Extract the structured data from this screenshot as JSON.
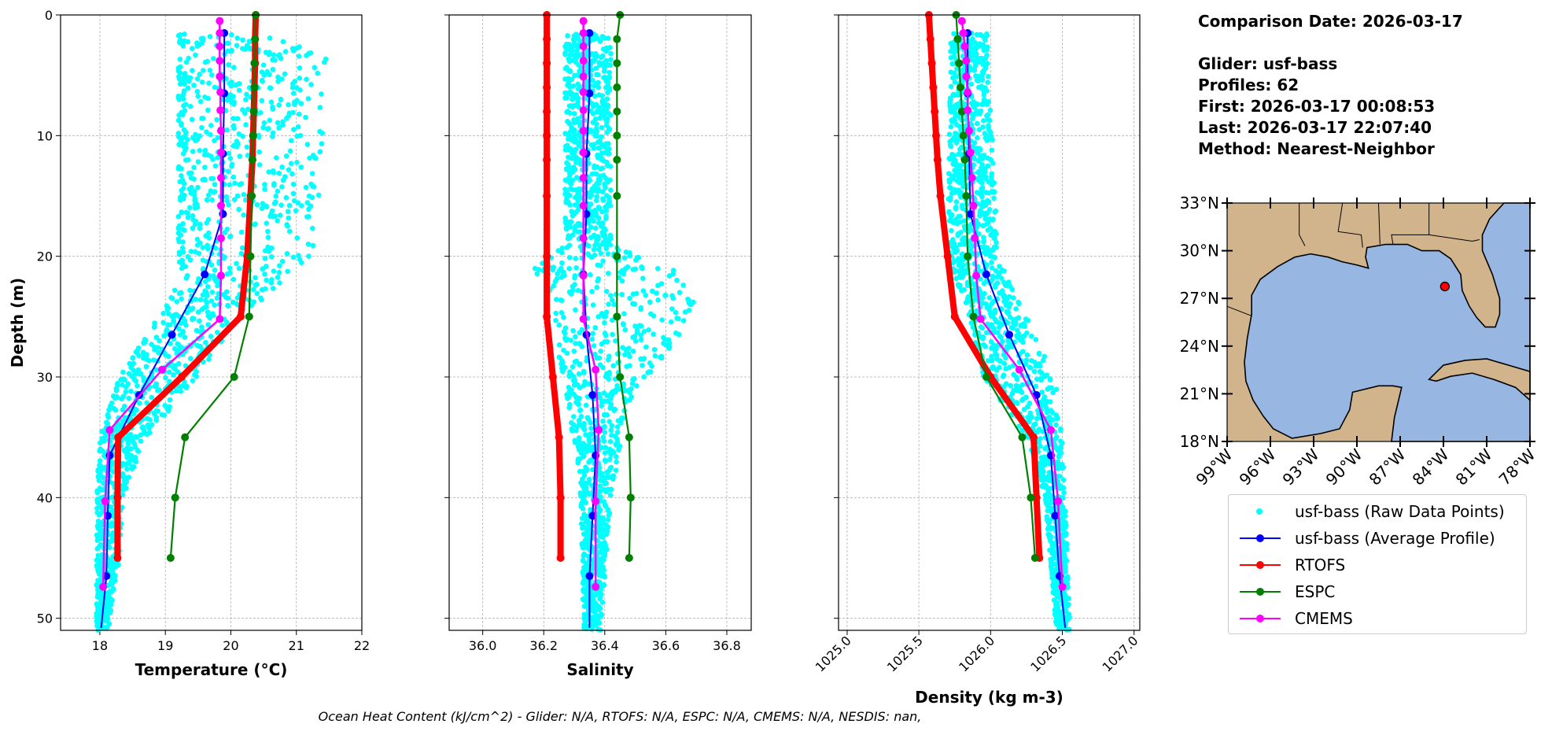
{
  "info": {
    "comparison_date": "Comparison Date: 2026-03-17",
    "glider": "Glider: usf-bass",
    "profiles": "Profiles: 62",
    "first": "First: 2026-03-17 00:08:53",
    "last": "Last: 2026-03-17 22:07:40",
    "method": "Method: Nearest-Neighbor"
  },
  "footer": "Ocean Heat Content (kJ/cm^2) - Glider: N/A,  RTOFS: N/A,  ESPC: N/A,  CMEMS: N/A,  NESDIS: nan,",
  "legend": [
    {
      "label": "usf-bass (Raw Data Points)",
      "color": "#00ffff",
      "style": "dot"
    },
    {
      "label": "usf-bass (Average Profile)",
      "color": "#0000ff",
      "style": "line-marker"
    },
    {
      "label": "RTOFS",
      "color": "#ff0000",
      "style": "line-marker"
    },
    {
      "label": "ESPC",
      "color": "#008000",
      "style": "line-marker"
    },
    {
      "label": "CMEMS",
      "color": "#ff00ff",
      "style": "line-marker"
    }
  ],
  "map": {
    "lon_range": [
      -99,
      -78
    ],
    "lat_range": [
      18,
      33
    ],
    "lon_ticks": [
      "99°W",
      "96°W",
      "93°W",
      "90°W",
      "87°W",
      "84°W",
      "81°W",
      "78°W"
    ],
    "lat_ticks": [
      "18°N",
      "21°N",
      "24°N",
      "27°N",
      "30°N",
      "33°N"
    ],
    "glider_position": {
      "lon": -83.9,
      "lat": 27.75
    },
    "land_color": "#d2b48c",
    "water_color": "#97b6e1"
  },
  "chart_data": [
    {
      "type": "line",
      "xlabel": "Temperature (°C)",
      "ylabel": "Depth (m)",
      "xlim": [
        17.4,
        22.0
      ],
      "ylim": [
        51,
        0
      ],
      "xticks": [
        "18",
        "19",
        "20",
        "21",
        "22"
      ],
      "yticks": [
        "0",
        "10",
        "20",
        "30",
        "40",
        "50"
      ],
      "grid": true,
      "raw_envelope": [
        [
          2,
          19.2,
          21.5
        ],
        [
          20,
          19.2,
          21.3
        ],
        [
          22,
          19.2,
          20.9
        ],
        [
          25,
          18.9,
          20.1
        ],
        [
          30,
          18.3,
          19.5
        ],
        [
          35,
          18.0,
          18.7
        ],
        [
          40,
          17.95,
          18.35
        ],
        [
          45,
          17.95,
          18.3
        ],
        [
          50,
          17.95,
          18.15
        ]
      ],
      "series": [
        {
          "name": "usf-bass (Average Profile)",
          "depth": [
            1.5,
            6.5,
            11.5,
            16.5,
            21.5,
            26.5,
            31.5,
            36.5,
            41.5,
            46.5,
            50.8
          ],
          "values": [
            19.9,
            19.9,
            19.88,
            19.88,
            19.6,
            19.1,
            18.6,
            18.15,
            18.12,
            18.1,
            18.02
          ]
        },
        {
          "name": "RTOFS",
          "depth": [
            0,
            2,
            4,
            6,
            8,
            10,
            12,
            15,
            20,
            25,
            30,
            35,
            40,
            45
          ],
          "values": [
            20.38,
            20.37,
            20.37,
            20.36,
            20.35,
            20.34,
            20.33,
            20.3,
            20.25,
            20.15,
            19.25,
            18.28,
            18.27,
            18.27
          ]
        },
        {
          "name": "ESPC",
          "depth": [
            0,
            2,
            4,
            6,
            8,
            10,
            12,
            15,
            20,
            25,
            30,
            35,
            40,
            45
          ],
          "values": [
            20.38,
            20.37,
            20.36,
            20.36,
            20.35,
            20.34,
            20.33,
            20.32,
            20.3,
            20.28,
            20.05,
            19.3,
            19.15,
            19.08
          ]
        },
        {
          "name": "CMEMS",
          "depth": [
            0.5,
            1.5,
            2.6,
            3.8,
            5.1,
            6.4,
            7.9,
            9.6,
            11.4,
            13.5,
            15.8,
            18.5,
            21.6,
            25.2,
            29.4,
            34.4,
            40.3,
            47.4
          ],
          "values": [
            19.83,
            19.83,
            19.83,
            19.83,
            19.83,
            19.84,
            19.84,
            19.85,
            19.85,
            19.85,
            19.85,
            19.85,
            19.85,
            19.83,
            18.95,
            18.15,
            18.08,
            18.05
          ]
        }
      ]
    },
    {
      "type": "line",
      "xlabel": "Salinity",
      "xlim": [
        35.89,
        36.88
      ],
      "ylim": [
        51,
        0
      ],
      "xticks": [
        "36.0",
        "36.2",
        "36.4",
        "36.6",
        "36.8"
      ],
      "grid": true,
      "raw_envelope": [
        [
          2,
          36.27,
          36.42
        ],
        [
          19,
          36.27,
          36.42
        ],
        [
          21,
          36.17,
          36.62
        ],
        [
          24,
          36.22,
          36.72
        ],
        [
          28,
          36.24,
          36.6
        ],
        [
          32,
          36.28,
          36.48
        ],
        [
          36,
          36.3,
          36.45
        ],
        [
          40,
          36.32,
          36.42
        ],
        [
          50,
          36.33,
          36.39
        ]
      ],
      "series": [
        {
          "name": "usf-bass (Average Profile)",
          "depth": [
            1.5,
            6.5,
            11.5,
            16.5,
            21.5,
            26.5,
            31.5,
            36.5,
            41.5,
            46.5,
            50.8
          ],
          "values": [
            36.35,
            36.35,
            36.34,
            36.34,
            36.33,
            36.34,
            36.36,
            36.37,
            36.36,
            36.35,
            36.35
          ]
        },
        {
          "name": "RTOFS",
          "depth": [
            0,
            2,
            4,
            6,
            8,
            10,
            12,
            15,
            20,
            25,
            30,
            35,
            40,
            45
          ],
          "values": [
            36.21,
            36.21,
            36.21,
            36.21,
            36.21,
            36.21,
            36.21,
            36.21,
            36.21,
            36.21,
            36.23,
            36.25,
            36.255,
            36.255
          ]
        },
        {
          "name": "ESPC",
          "depth": [
            0,
            2,
            4,
            6,
            8,
            10,
            12,
            15,
            20,
            25,
            30,
            35,
            40,
            45
          ],
          "values": [
            36.45,
            36.44,
            36.44,
            36.44,
            36.44,
            36.44,
            36.44,
            36.44,
            36.44,
            36.44,
            36.45,
            36.48,
            36.485,
            36.48
          ]
        },
        {
          "name": "CMEMS",
          "depth": [
            0.5,
            1.5,
            2.6,
            3.8,
            5.1,
            6.4,
            7.9,
            9.6,
            11.4,
            13.5,
            15.8,
            18.5,
            21.6,
            25.2,
            29.4,
            34.4,
            40.3,
            47.4
          ],
          "values": [
            36.33,
            36.33,
            36.33,
            36.33,
            36.33,
            36.33,
            36.33,
            36.33,
            36.33,
            36.33,
            36.33,
            36.33,
            36.33,
            36.33,
            36.37,
            36.38,
            36.37,
            36.37
          ]
        }
      ]
    },
    {
      "type": "line",
      "xlabel": "Density (kg m-3)",
      "xlim": [
        1024.94,
        1027.04
      ],
      "ylim": [
        51,
        0
      ],
      "xticks": [
        "1025.0",
        "1025.5",
        "1026.0",
        "1026.5",
        "1027.0"
      ],
      "grid": true,
      "raw_envelope": [
        [
          2,
          1025.72,
          1025.98
        ],
        [
          20,
          1025.7,
          1026.05
        ],
        [
          25,
          1025.85,
          1026.25
        ],
        [
          30,
          1025.95,
          1026.45
        ],
        [
          35,
          1026.25,
          1026.5
        ],
        [
          40,
          1026.38,
          1026.52
        ],
        [
          50,
          1026.45,
          1026.55
        ]
      ],
      "series": [
        {
          "name": "usf-bass (Average Profile)",
          "depth": [
            1.5,
            6.5,
            11.5,
            16.5,
            21.5,
            26.5,
            31.5,
            36.5,
            41.5,
            46.5,
            50.8
          ],
          "values": [
            1025.84,
            1025.84,
            1025.85,
            1025.86,
            1025.97,
            1026.13,
            1026.32,
            1026.42,
            1026.45,
            1026.48,
            1026.52
          ]
        },
        {
          "name": "RTOFS",
          "depth": [
            0,
            2,
            4,
            6,
            8,
            10,
            12,
            15,
            20,
            25,
            30,
            35,
            40,
            45
          ],
          "values": [
            1025.57,
            1025.58,
            1025.59,
            1025.6,
            1025.61,
            1025.62,
            1025.63,
            1025.65,
            1025.7,
            1025.75,
            1026.0,
            1026.3,
            1026.32,
            1026.34
          ]
        },
        {
          "name": "ESPC",
          "depth": [
            0,
            2,
            4,
            6,
            8,
            10,
            12,
            15,
            20,
            25,
            30,
            35,
            40,
            45
          ],
          "values": [
            1025.76,
            1025.77,
            1025.78,
            1025.79,
            1025.8,
            1025.81,
            1025.82,
            1025.83,
            1025.84,
            1025.88,
            1025.97,
            1026.22,
            1026.28,
            1026.31
          ]
        },
        {
          "name": "CMEMS",
          "depth": [
            0.5,
            1.5,
            2.6,
            3.8,
            5.1,
            6.4,
            7.9,
            9.6,
            11.4,
            13.5,
            15.8,
            18.5,
            21.6,
            25.2,
            29.4,
            34.4,
            40.3,
            47.4
          ],
          "values": [
            1025.8,
            1025.81,
            1025.82,
            1025.83,
            1025.83,
            1025.84,
            1025.84,
            1025.85,
            1025.86,
            1025.87,
            1025.88,
            1025.89,
            1025.9,
            1025.93,
            1026.2,
            1026.42,
            1026.47,
            1026.5
          ]
        }
      ]
    }
  ]
}
